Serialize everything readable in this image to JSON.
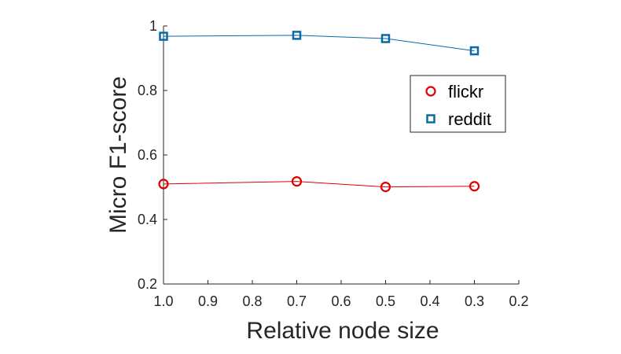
{
  "chart_data": {
    "type": "line",
    "title": "",
    "xlabel": "Relative node size",
    "ylabel": "Micro F1-score",
    "x": [
      1.0,
      0.7,
      0.5,
      0.3
    ],
    "xlim": [
      1.0,
      0.2
    ],
    "x_reversed": true,
    "xticks": [
      1.0,
      0.9,
      0.8,
      0.7,
      0.6,
      0.5,
      0.4,
      0.3,
      0.2
    ],
    "xtick_labels": [
      "1.0",
      "0.9",
      "0.8",
      "0.7",
      "0.6",
      "0.5",
      "0.4",
      "0.3",
      "0.2"
    ],
    "ylim": [
      0.2,
      1.0
    ],
    "yticks": [
      0.2,
      0.4,
      0.6,
      0.8,
      1.0
    ],
    "ytick_labels": [
      "0.2",
      "0.4",
      "0.6",
      "0.8",
      "1"
    ],
    "grid": false,
    "legend_position": "top-right",
    "series": [
      {
        "name": "flickr",
        "values": [
          0.51,
          0.518,
          0.501,
          0.503
        ],
        "color": "#e00000",
        "marker": "circle"
      },
      {
        "name": "reddit",
        "values": [
          0.968,
          0.971,
          0.961,
          0.923
        ],
        "color": "#0a6aa8",
        "marker": "square"
      }
    ]
  }
}
